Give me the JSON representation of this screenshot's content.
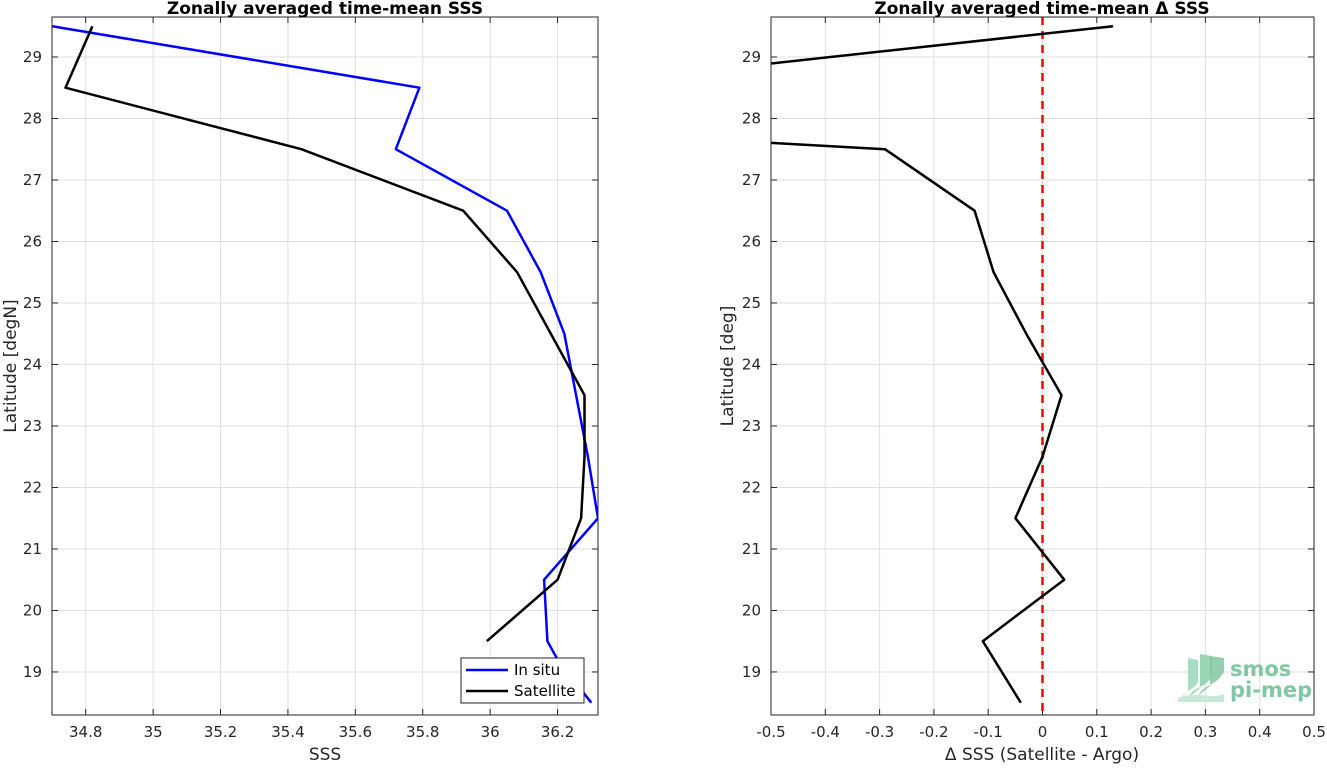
{
  "chart_data": [
    {
      "type": "line",
      "title": "Zonally averaged time-mean SSS",
      "xlabel": "SSS",
      "ylabel": "Latitude [degN]",
      "xlim": [
        34.7,
        36.32
      ],
      "ylim": [
        18.3,
        29.65
      ],
      "xticks": [
        34.8,
        35,
        35.2,
        35.4,
        35.6,
        35.8,
        36,
        36.2
      ],
      "yticks": [
        19,
        20,
        21,
        22,
        23,
        24,
        25,
        26,
        27,
        28,
        29
      ],
      "grid": true,
      "legend_position": "bottom-right",
      "series": [
        {
          "name": "In situ",
          "color": "#0000ff",
          "points": [
            [
              36.3,
              18.5
            ],
            [
              36.2,
              19.2
            ],
            [
              36.17,
              19.5
            ],
            [
              36.16,
              20.5
            ],
            [
              36.32,
              21.5
            ],
            [
              36.29,
              22.5
            ],
            [
              36.22,
              24.5
            ],
            [
              36.15,
              25.5
            ],
            [
              36.05,
              26.5
            ],
            [
              35.72,
              27.5
            ],
            [
              35.79,
              28.5
            ],
            [
              34.7,
              29.5
            ]
          ]
        },
        {
          "name": "Satellite",
          "color": "#000000",
          "points": [
            [
              35.99,
              19.5
            ],
            [
              36.2,
              20.5
            ],
            [
              36.27,
              21.5
            ],
            [
              36.28,
              22.5
            ],
            [
              36.28,
              23.5
            ],
            [
              36.08,
              25.5
            ],
            [
              35.92,
              26.5
            ],
            [
              35.44,
              27.5
            ],
            [
              34.74,
              28.5
            ],
            [
              34.82,
              29.5
            ]
          ]
        }
      ]
    },
    {
      "type": "line",
      "title": "Zonally averaged time-mean Δ SSS",
      "xlabel": "Δ SSS (Satellite - Argo)",
      "ylabel": "Latitude [deg]",
      "xlim": [
        -0.5,
        0.5
      ],
      "ylim": [
        18.3,
        29.65
      ],
      "xticks": [
        -0.5,
        -0.4,
        -0.3,
        -0.2,
        -0.1,
        0,
        0.1,
        0.2,
        0.3,
        0.4,
        0.5
      ],
      "yticks": [
        19,
        20,
        21,
        22,
        23,
        24,
        25,
        26,
        27,
        28,
        29
      ],
      "grid": true,
      "reference_line": {
        "x": 0,
        "color": "#ff0000",
        "style": "dashed"
      },
      "series": [
        {
          "color": "#000000",
          "points": [
            [
              -0.04,
              18.5
            ],
            [
              -0.11,
              19.5
            ],
            [
              0.04,
              20.5
            ],
            [
              -0.05,
              21.5
            ],
            [
              0.0,
              22.5
            ],
            [
              0.035,
              23.5
            ],
            [
              -0.03,
              24.5
            ],
            [
              -0.09,
              25.5
            ],
            [
              -0.125,
              26.5
            ],
            [
              -0.29,
              27.5
            ],
            [
              -0.7,
              27.7
            ],
            [
              -0.7,
              28.7
            ],
            [
              0.13,
              29.5
            ]
          ]
        }
      ]
    }
  ],
  "logo": {
    "line1": "smos",
    "line2": "pi-mep",
    "color": "#7fc8a3"
  }
}
